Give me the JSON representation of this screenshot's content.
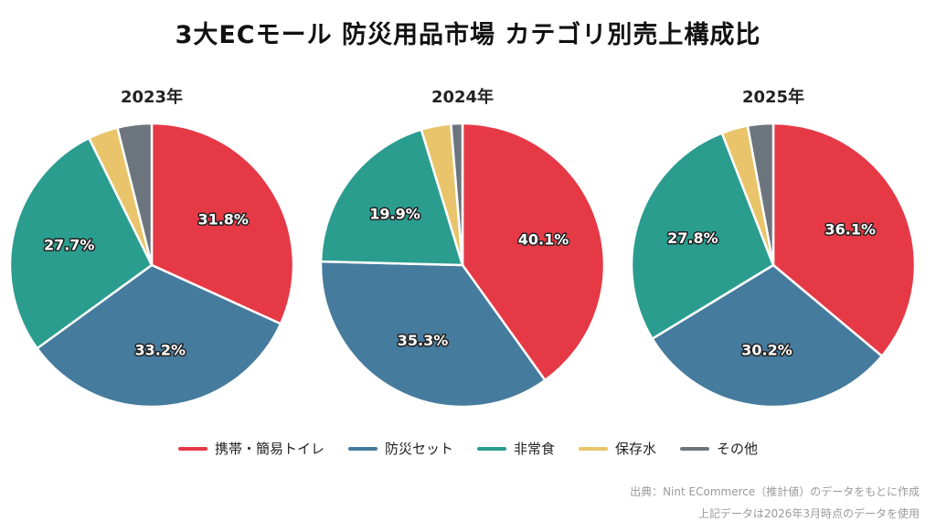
{
  "title": "3大ECモール 防災用品市場 カテゴリ別売上構成比",
  "colors": {
    "red": "#e63946",
    "blue": "#457b9d",
    "teal": "#2a9d8f",
    "yellow": "#e9c46a",
    "gray": "#6c757d"
  },
  "legend": [
    {
      "label": "携帯・簡易トイレ",
      "color": "#e63946"
    },
    {
      "label": "防災セット",
      "color": "#457b9d"
    },
    {
      "label": "非常食",
      "color": "#2a9d8f"
    },
    {
      "label": "保存水",
      "color": "#e9c46a"
    },
    {
      "label": "その他",
      "color": "#6c757d"
    }
  ],
  "chart_data": [
    {
      "type": "pie",
      "title": "2023年",
      "categories": [
        "携帯・簡易トイレ",
        "防災セット",
        "非常食",
        "保存水",
        "その他"
      ],
      "values": [
        31.8,
        33.2,
        27.7,
        3.4,
        3.9
      ],
      "labels": [
        "31.8%",
        "33.2%",
        "27.7%",
        "",
        ""
      ]
    },
    {
      "type": "pie",
      "title": "2024年",
      "categories": [
        "携帯・簡易トイレ",
        "防災セット",
        "非常食",
        "保存水",
        "その他"
      ],
      "values": [
        40.1,
        35.3,
        19.9,
        3.4,
        1.3
      ],
      "labels": [
        "40.1%",
        "35.3%",
        "19.9%",
        "",
        ""
      ]
    },
    {
      "type": "pie",
      "title": "2025年",
      "categories": [
        "携帯・簡易トイレ",
        "防災セット",
        "非常食",
        "保存水",
        "その他"
      ],
      "values": [
        36.1,
        30.2,
        27.8,
        3.0,
        2.9
      ],
      "labels": [
        "36.1%",
        "30.2%",
        "27.8%",
        "",
        ""
      ]
    }
  ],
  "footnotes": {
    "source": "出典：Nint ECommerce（推計値）のデータをもとに作成",
    "note": "上記データは2026年3月時点のデータを使用"
  }
}
